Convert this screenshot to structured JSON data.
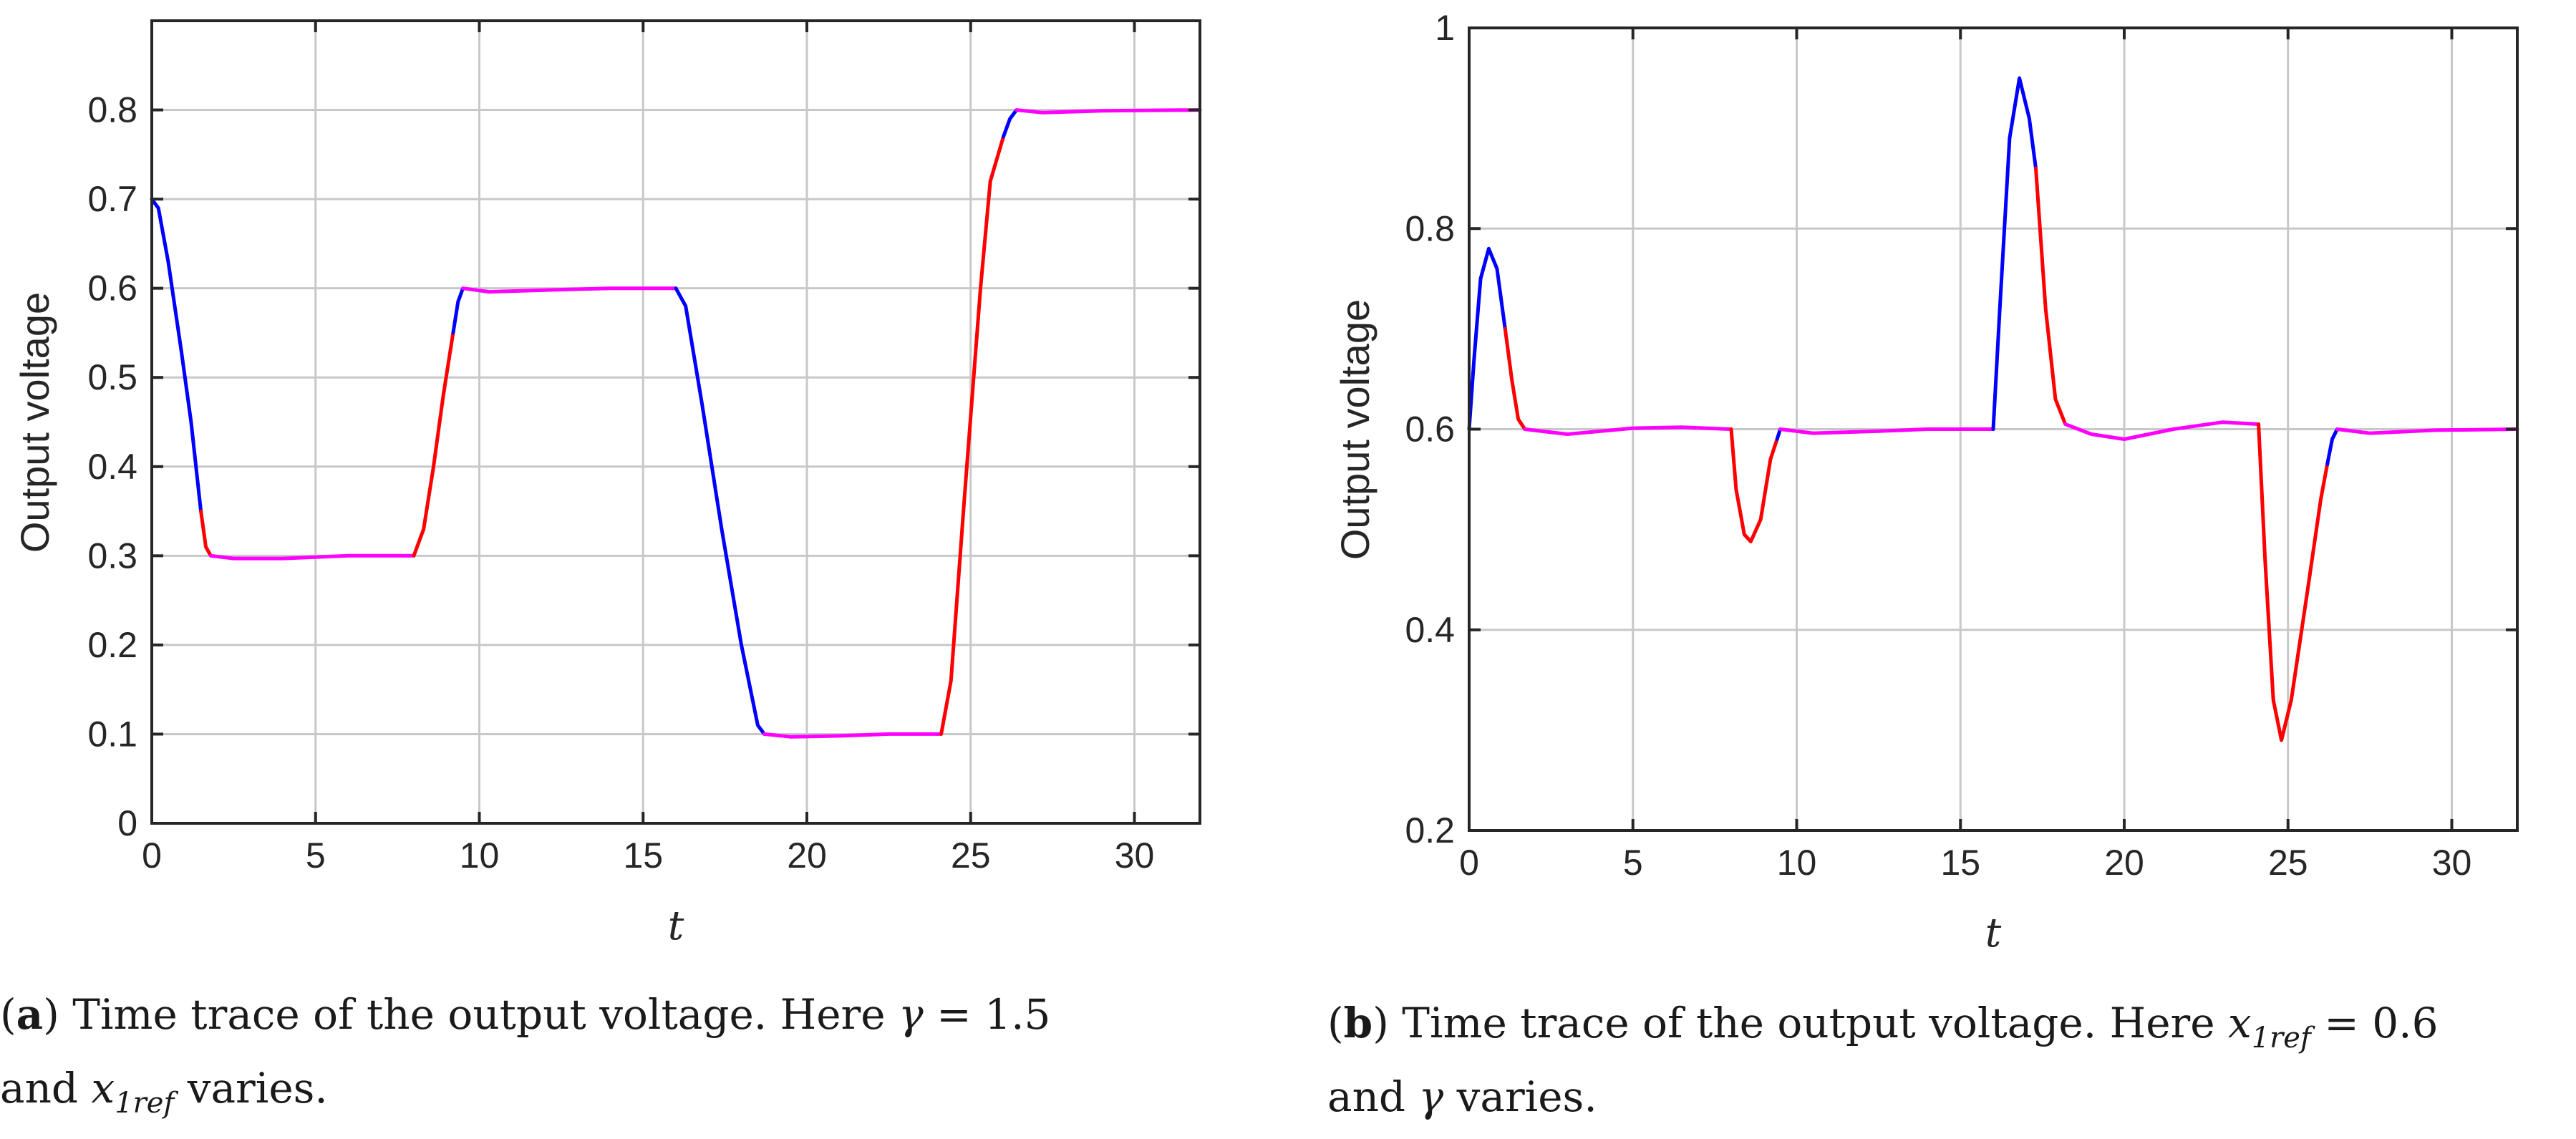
{
  "chart_data": [
    {
      "type": "line",
      "panel": "a",
      "ylabel": "Output voltage",
      "xlabel": "t",
      "xlim": [
        0,
        32
      ],
      "ylim": [
        0,
        0.9
      ],
      "xticks": [
        0,
        5,
        10,
        15,
        20,
        25,
        30
      ],
      "yticks": [
        0,
        0.1,
        0.2,
        0.3,
        0.4,
        0.5,
        0.6,
        0.7,
        0.8
      ],
      "xtick_labels": [
        "0",
        "5",
        "10",
        "15",
        "20",
        "25",
        "30"
      ],
      "ytick_labels": [
        "0",
        "0.1",
        "0.2",
        "0.3",
        "0.4",
        "0.5",
        "0.6",
        "0.7",
        "0.8"
      ],
      "grid": true,
      "colors": {
        "blue": "#0000ff",
        "red": "#ff0000",
        "magenta": "#ff00ff"
      },
      "segments": [
        {
          "color": "blue",
          "points": [
            [
              0,
              0.7
            ],
            [
              0.2,
              0.69
            ],
            [
              0.5,
              0.63
            ],
            [
              0.9,
              0.53
            ],
            [
              1.2,
              0.45
            ],
            [
              1.5,
              0.35
            ]
          ]
        },
        {
          "color": "red",
          "points": [
            [
              1.5,
              0.35
            ],
            [
              1.65,
              0.31
            ],
            [
              1.8,
              0.3
            ]
          ]
        },
        {
          "color": "magenta",
          "points": [
            [
              1.8,
              0.3
            ],
            [
              2.5,
              0.297
            ],
            [
              4,
              0.297
            ],
            [
              6,
              0.3
            ],
            [
              8,
              0.3
            ]
          ]
        },
        {
          "color": "red",
          "points": [
            [
              8,
              0.3
            ],
            [
              8.3,
              0.33
            ],
            [
              8.6,
              0.4
            ],
            [
              8.9,
              0.48
            ],
            [
              9.2,
              0.55
            ]
          ]
        },
        {
          "color": "blue",
          "points": [
            [
              9.2,
              0.55
            ],
            [
              9.35,
              0.585
            ],
            [
              9.5,
              0.6
            ]
          ]
        },
        {
          "color": "magenta",
          "points": [
            [
              9.5,
              0.6
            ],
            [
              10.3,
              0.596
            ],
            [
              12,
              0.598
            ],
            [
              14,
              0.6
            ],
            [
              16,
              0.6
            ]
          ]
        },
        {
          "color": "blue",
          "points": [
            [
              16,
              0.6
            ],
            [
              16.3,
              0.58
            ],
            [
              16.8,
              0.47
            ],
            [
              17.4,
              0.33
            ],
            [
              18,
              0.2
            ],
            [
              18.5,
              0.11
            ],
            [
              18.7,
              0.1
            ]
          ]
        },
        {
          "color": "magenta",
          "points": [
            [
              18.7,
              0.1
            ],
            [
              19.5,
              0.097
            ],
            [
              21,
              0.098
            ],
            [
              22.5,
              0.1
            ],
            [
              24.1,
              0.1
            ]
          ]
        },
        {
          "color": "red",
          "points": [
            [
              24.1,
              0.1
            ],
            [
              24.4,
              0.16
            ],
            [
              24.8,
              0.36
            ],
            [
              25.3,
              0.6
            ],
            [
              25.6,
              0.72
            ],
            [
              26.0,
              0.77
            ]
          ]
        },
        {
          "color": "blue",
          "points": [
            [
              26.0,
              0.77
            ],
            [
              26.2,
              0.79
            ],
            [
              26.4,
              0.8
            ]
          ]
        },
        {
          "color": "magenta",
          "points": [
            [
              26.4,
              0.8
            ],
            [
              27.2,
              0.797
            ],
            [
              29,
              0.799
            ],
            [
              32,
              0.8
            ]
          ]
        }
      ]
    },
    {
      "type": "line",
      "panel": "b",
      "ylabel": "Output voltage",
      "xlabel": "t",
      "xlim": [
        0,
        32
      ],
      "ylim": [
        0.2,
        1.0
      ],
      "xticks": [
        0,
        5,
        10,
        15,
        20,
        25,
        30
      ],
      "yticks": [
        0.2,
        0.4,
        0.6,
        0.8,
        1.0
      ],
      "xtick_labels": [
        "0",
        "5",
        "10",
        "15",
        "20",
        "25",
        "30"
      ],
      "ytick_labels": [
        "0.2",
        "0.4",
        "0.6",
        "0.8",
        "1"
      ],
      "grid": true,
      "colors": {
        "blue": "#0000ff",
        "red": "#ff0000",
        "magenta": "#ff00ff"
      },
      "segments": [
        {
          "color": "blue",
          "points": [
            [
              0,
              0.6
            ],
            [
              0.15,
              0.67
            ],
            [
              0.35,
              0.75
            ],
            [
              0.6,
              0.78
            ],
            [
              0.85,
              0.76
            ],
            [
              1.1,
              0.7
            ]
          ]
        },
        {
          "color": "red",
          "points": [
            [
              1.1,
              0.7
            ],
            [
              1.3,
              0.65
            ],
            [
              1.5,
              0.61
            ],
            [
              1.7,
              0.6
            ]
          ]
        },
        {
          "color": "magenta",
          "points": [
            [
              1.7,
              0.6
            ],
            [
              3,
              0.595
            ],
            [
              5,
              0.601
            ],
            [
              6.5,
              0.602
            ],
            [
              8,
              0.6
            ]
          ]
        },
        {
          "color": "red",
          "points": [
            [
              8,
              0.6
            ],
            [
              8.15,
              0.54
            ],
            [
              8.4,
              0.495
            ],
            [
              8.6,
              0.488
            ],
            [
              8.9,
              0.51
            ],
            [
              9.2,
              0.57
            ],
            [
              9.4,
              0.59
            ]
          ]
        },
        {
          "color": "blue",
          "points": [
            [
              9.4,
              0.59
            ],
            [
              9.5,
              0.6
            ]
          ]
        },
        {
          "color": "magenta",
          "points": [
            [
              9.5,
              0.6
            ],
            [
              10.5,
              0.596
            ],
            [
              12.5,
              0.598
            ],
            [
              14,
              0.6
            ],
            [
              16,
              0.6
            ]
          ]
        },
        {
          "color": "blue",
          "points": [
            [
              16,
              0.6
            ],
            [
              16.2,
              0.72
            ],
            [
              16.5,
              0.89
            ],
            [
              16.8,
              0.95
            ],
            [
              17.1,
              0.91
            ],
            [
              17.3,
              0.86
            ]
          ]
        },
        {
          "color": "red",
          "points": [
            [
              17.3,
              0.86
            ],
            [
              17.6,
              0.72
            ],
            [
              17.9,
              0.63
            ],
            [
              18.2,
              0.605
            ]
          ]
        },
        {
          "color": "magenta",
          "points": [
            [
              18.2,
              0.605
            ],
            [
              19,
              0.595
            ],
            [
              20,
              0.59
            ],
            [
              21.5,
              0.6
            ],
            [
              23,
              0.607
            ],
            [
              24.1,
              0.605
            ]
          ]
        },
        {
          "color": "red",
          "points": [
            [
              24.1,
              0.605
            ],
            [
              24.3,
              0.47
            ],
            [
              24.55,
              0.33
            ],
            [
              24.8,
              0.29
            ],
            [
              25.1,
              0.33
            ],
            [
              25.6,
              0.44
            ],
            [
              26.0,
              0.53
            ],
            [
              26.2,
              0.565
            ]
          ]
        },
        {
          "color": "blue",
          "points": [
            [
              26.2,
              0.565
            ],
            [
              26.35,
              0.59
            ],
            [
              26.5,
              0.6
            ]
          ]
        },
        {
          "color": "magenta",
          "points": [
            [
              26.5,
              0.6
            ],
            [
              27.5,
              0.596
            ],
            [
              29.5,
              0.599
            ],
            [
              32,
              0.6
            ]
          ]
        }
      ]
    }
  ],
  "captions": {
    "a": {
      "label": "a",
      "line1_text": ") Time trace of the output voltage. Here ",
      "gamma_symbol": "γ",
      "line1_eq": " = 1.5",
      "line2_text": "and ",
      "var_x": "x",
      "var_sub": "1ref",
      "line2_tail": " varies."
    },
    "b": {
      "label": "b",
      "line1_text": ") Time trace of the output voltage. Here ",
      "var_x": "x",
      "var_sub": "1ref",
      "line1_eq": " = 0.6",
      "line2_text": "and ",
      "gamma_symbol": "γ",
      "line2_tail": " varies."
    }
  }
}
